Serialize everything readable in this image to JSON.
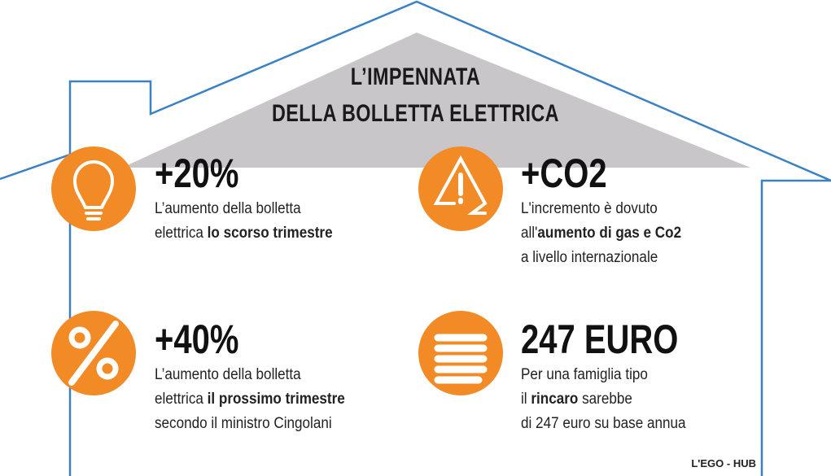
{
  "title": [
    "L’IMPENNATA",
    "DELLA BOLLETTA ELETTRICA"
  ],
  "items": [
    {
      "headline": "+20%",
      "lines": [
        [
          {
            "text": "L’aumento della bolletta"
          }
        ],
        [
          {
            "text": "elettrica "
          },
          {
            "text": "lo scorso trimestre",
            "bold": true
          }
        ]
      ]
    },
    {
      "headline": "+CO2",
      "lines": [
        [
          {
            "text": "L'incremento è dovuto"
          }
        ],
        [
          {
            "text": "all'"
          },
          {
            "text": "aumento di gas e Co2",
            "bold": true
          }
        ],
        [
          {
            "text": "a livello internazionale"
          }
        ]
      ]
    },
    {
      "headline": "+40%",
      "lines": [
        [
          {
            "text": "L’aumento della bolletta"
          }
        ],
        [
          {
            "text": "elettrica "
          },
          {
            "text": "il prossimo trimestre",
            "bold": true
          }
        ],
        [
          {
            "text": "secondo il ministro Cingolani"
          }
        ]
      ]
    },
    {
      "headline": "247 EURO",
      "lines": [
        [
          {
            "text": "Per una famiglia tipo"
          }
        ],
        [
          {
            "text": "il "
          },
          {
            "text": "rincaro",
            "bold": true
          },
          {
            "text": " sarebbe"
          }
        ],
        [
          {
            "text": "di 247 euro su base annua"
          }
        ]
      ]
    }
  ],
  "credit": "L'EGO - HUB"
}
